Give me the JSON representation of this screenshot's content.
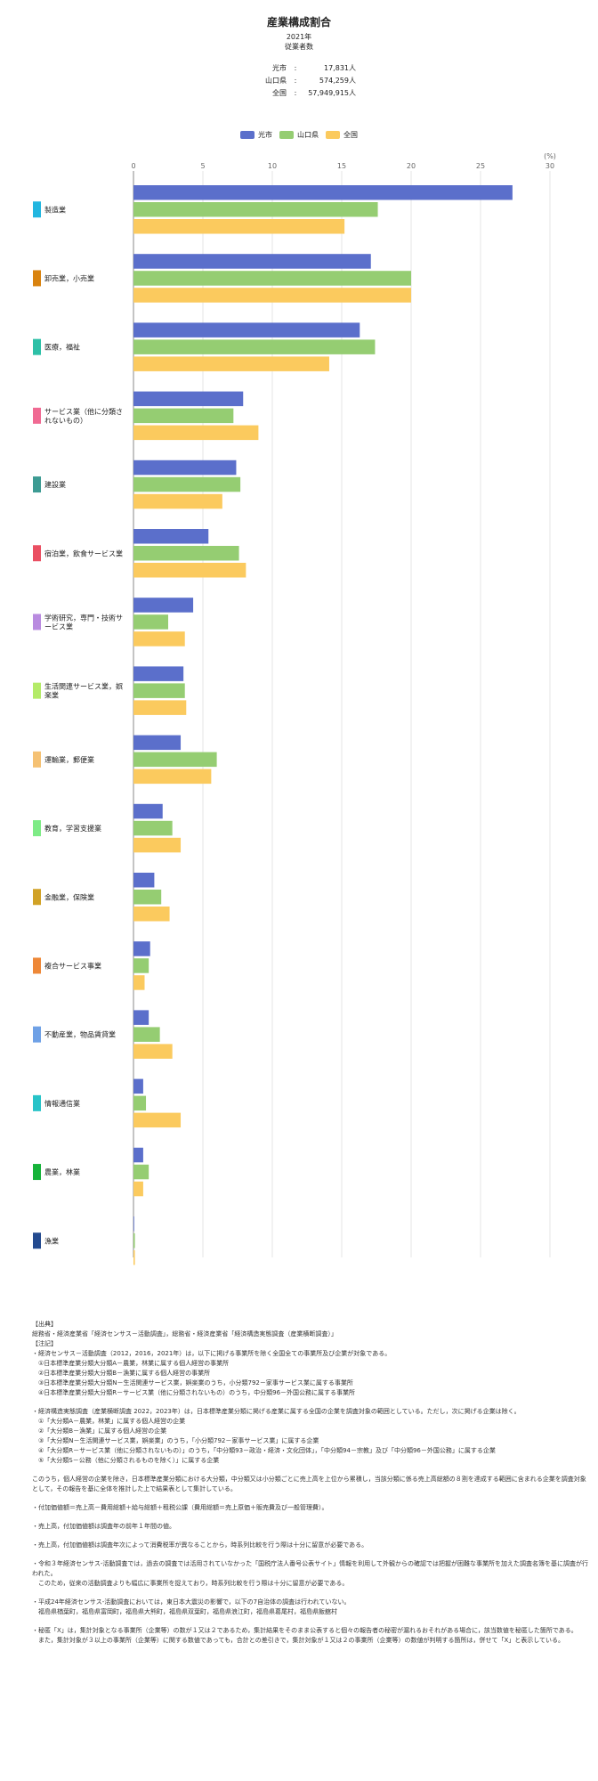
{
  "header": {
    "title": "産業構成割合",
    "year": "2021年",
    "measure": "従業者数"
  },
  "stats": [
    {
      "label": "光市",
      "value": "17,831人"
    },
    {
      "label": "山口県",
      "value": "574,259人"
    },
    {
      "label": "全国",
      "value": "57,949,915人"
    }
  ],
  "stat_sep": ":",
  "colors": {
    "hikari": "#5b6fcb",
    "yamaguchi": "#95cd72",
    "zenkoku": "#fbca5e",
    "grid": "#e4e4e4",
    "axis": "#888888"
  },
  "chart_data": {
    "type": "bar",
    "orientation": "horizontal",
    "unit_label": "(%)",
    "xlim": [
      0,
      30
    ],
    "xticks": [
      0,
      5,
      10,
      15,
      20,
      25,
      30
    ],
    "grid": true,
    "legend_position": "top-center",
    "categories": [
      {
        "name": "製造業",
        "color": "#22b6e0"
      },
      {
        "name": "卸売業，小売業",
        "color": "#d9830f"
      },
      {
        "name": "医療，福祉",
        "color": "#2dc0a7"
      },
      {
        "name": "サービス業（他に分類されないもの）",
        "color": "#f06a93"
      },
      {
        "name": "建設業",
        "color": "#3d9b93"
      },
      {
        "name": "宿泊業，飲食サービス業",
        "color": "#ea4f62"
      },
      {
        "name": "学術研究，専門・技術サービス業",
        "color": "#b98be0"
      },
      {
        "name": "生活関連サービス業，娯楽業",
        "color": "#b4eb68"
      },
      {
        "name": "運輸業，郵便業",
        "color": "#f5c173"
      },
      {
        "name": "教育，学習支援業",
        "color": "#7eeb86"
      },
      {
        "name": "金融業，保険業",
        "color": "#d1a226"
      },
      {
        "name": "複合サービス事業",
        "color": "#ee8838"
      },
      {
        "name": "不動産業，物品賃貸業",
        "color": "#6fa1e6"
      },
      {
        "name": "情報通信業",
        "color": "#28c3c8"
      },
      {
        "name": "農業，林業",
        "color": "#16b33a"
      },
      {
        "name": "漁業",
        "color": "#234a8f"
      }
    ],
    "series": [
      {
        "name": "光市",
        "values": [
          27.3,
          17.1,
          16.3,
          7.9,
          7.4,
          5.4,
          4.3,
          3.6,
          3.4,
          2.1,
          1.5,
          1.2,
          1.1,
          0.7,
          0.7,
          0.05
        ]
      },
      {
        "name": "山口県",
        "values": [
          17.6,
          20.0,
          17.4,
          7.2,
          7.7,
          7.6,
          2.5,
          3.7,
          6.0,
          2.8,
          2.0,
          1.1,
          1.9,
          0.9,
          1.1,
          0.1
        ]
      },
      {
        "name": "全国",
        "values": [
          15.2,
          20.0,
          14.1,
          9.0,
          6.4,
          8.1,
          3.7,
          3.8,
          5.6,
          3.4,
          2.6,
          0.8,
          2.8,
          3.4,
          0.7,
          0.1
        ]
      }
    ]
  },
  "notes": [
    "【出典】",
    "総務省・経済産業省「経済センサス－活動調査」，総務省・経済産業省「経済構造実態調査（産業横断調査）」",
    "【注記】",
    "・経済センサス－活動調査（2012，2016，2021年）は，以下に掲げる事業所を除く全国全ての事業所及び企業が対象である。",
    "　①日本標準産業分類大分類A－農業，林業に属する個人経営の事業所",
    "　②日本標準産業分類大分類B－漁業に属する個人経営の事業所",
    "　③日本標準産業分類大分類N－生活関連サービス業，娯楽業のうち，小分類792－家事サービス業に属する事業所",
    "　④日本標準産業分類大分類R－サービス業（他に分類されないもの）のうち，中分類96－外国公務に属する事業所",
    "",
    "・経済構造実態調査（産業横断調査 2022，2023年）は，日本標準産業分類に掲げる産業に属する全国の企業を調査対象の範囲としている。ただし，次に掲げる企業は除く。",
    "　①「大分類A－農業，林業」に属する個人経営の企業",
    "　②「大分類B－漁業」に属する個人経営の企業",
    "　③「大分類N－生活関連サービス業，娯楽業」のうち，「小分類792－家事サービス業」に属する企業",
    "　④「大分類R－サービス業（他に分類されないもの）」のうち，「中分類93－政治・経済・文化団体」，「中分類94－宗教」及び「中分類96－外国公務」に属する企業",
    "　⑤「大分類S－公務（他に分類されるものを除く）」に属する企業",
    "",
    "このうち，個人経営の企業を除き，日本標準産業分類における大分類，中分類又は小分類ごとに売上高を上位から累積し，当該分類に係る売上高総額の８割を達成する範囲に含まれる企業を調査対象として，その報告を基に全体を推計した上で結果表として集計している。",
    "",
    "・付加価値額＝売上高－費用総額＋給与総額＋租税公課（費用総額＝売上原価＋販売費及び一般管理費）。",
    "",
    "・売上高，付加価値額は調査年の前年１年間の値。",
    "",
    "・売上高，付加価値額は調査年次によって消費税率が異なることから，時系列比較を行う際は十分に留意が必要である。",
    "",
    "・令和３年経済センサス‐活動調査では，過去の調査では活用されていなかった「国税庁法人番号公表サイト」情報を利用して外観からの確認では把握が困難な事業所を加えた調査名簿を基に調査が行われた。",
    "　このため，従来の活動調査よりも幅広に事業所を捉えており，時系列比較を行う際は十分に留意が必要である。",
    "",
    "・平成24年経済センサス‐活動調査においては，東日本大震災の影響で，以下の7自治体の調査は行われていない。",
    "　福島県楢葉町，福島県富岡町，福島県大熊町，福島県双葉町，福島県浪江町，福島県葛尾村，福島県飯舘村",
    "",
    "・秘匿「X」は，集計対象となる事業所（企業等）の数が１又は２であるため，集計結果をそのまま公表すると個々の報告者の秘密が漏れるおそれがある場合に，該当数値を秘匿した箇所である。",
    "　また，集計対象が３以上の事業所（企業等）に関する数値であっても，合計との差引きで，集計対象が１又は２の事業所（企業等）の数値が判明する箇所は，併せて「X」と表示している。"
  ]
}
